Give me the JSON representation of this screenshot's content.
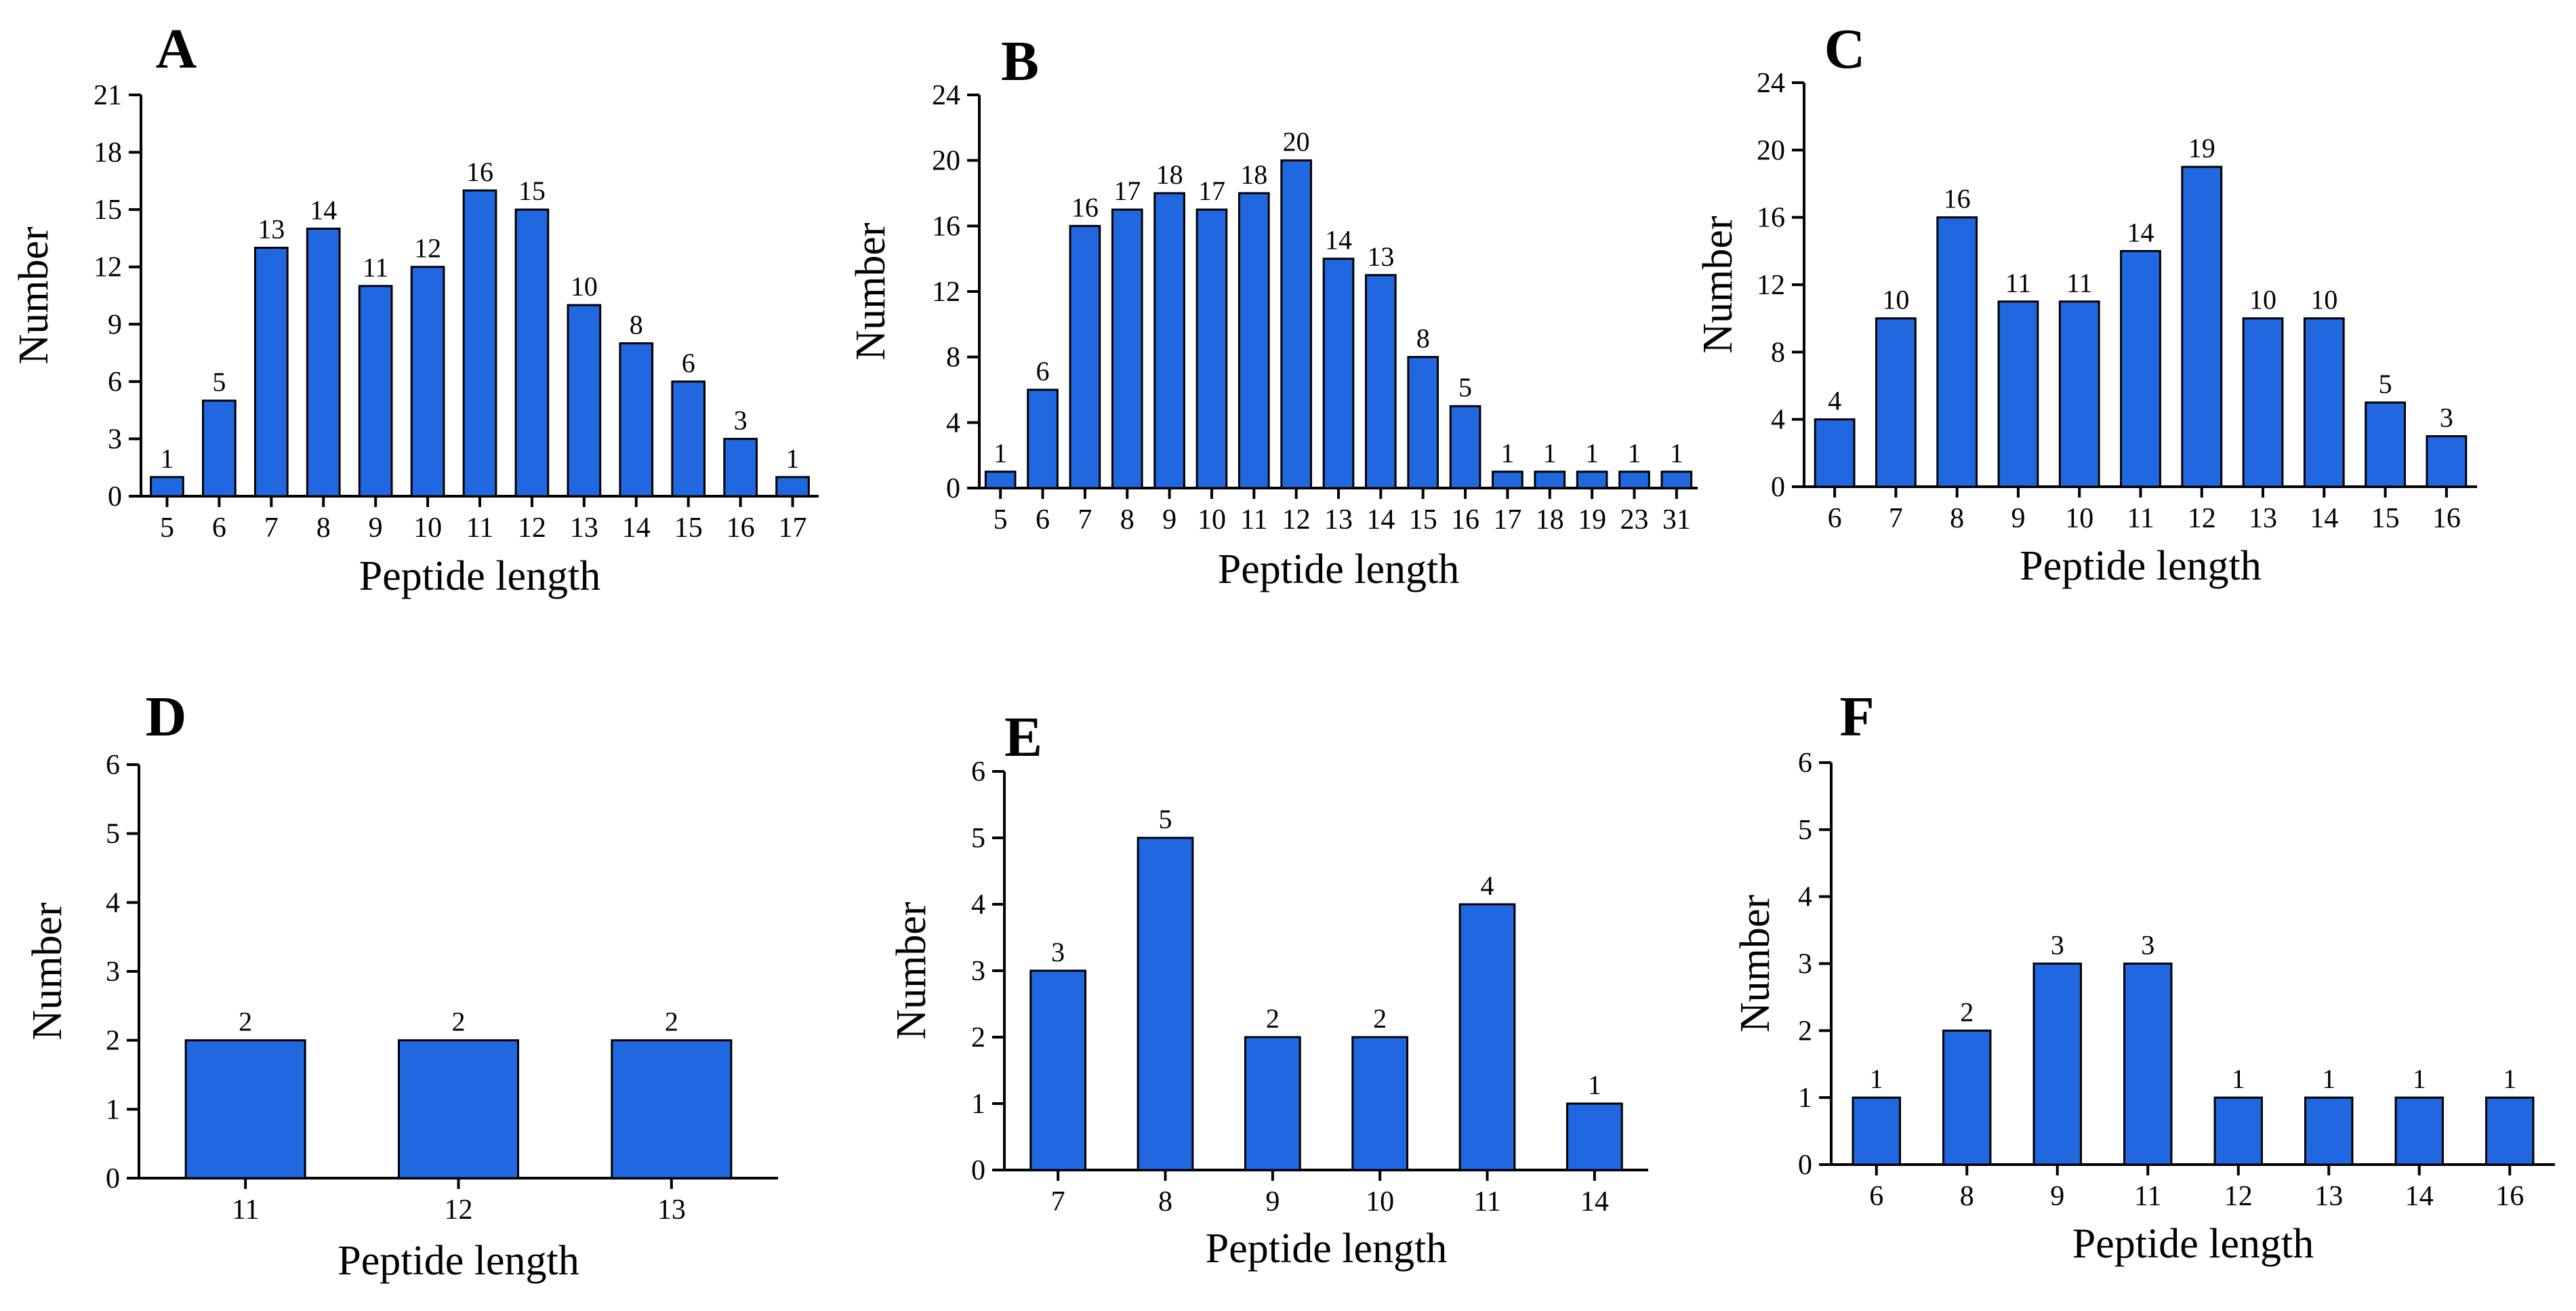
{
  "figure": {
    "bar_color": "#2168E0",
    "bar_edge": "#000000",
    "axis_color": "#000000"
  },
  "chart_data": [
    {
      "panel": "A",
      "type": "bar",
      "categories": [
        "5",
        "6",
        "7",
        "8",
        "9",
        "10",
        "11",
        "12",
        "13",
        "14",
        "15",
        "16",
        "17"
      ],
      "values": [
        1,
        5,
        13,
        14,
        11,
        12,
        16,
        15,
        10,
        8,
        6,
        3,
        1
      ],
      "data_labels": [
        "1",
        "5",
        "13",
        "14",
        "11",
        "12",
        "16",
        "15",
        "10",
        "8",
        "6",
        "3",
        "1"
      ],
      "xlabel": "Peptide length",
      "ylabel": "Number",
      "ylim": [
        0,
        21
      ],
      "yticks": [
        "0",
        "3",
        "6",
        "9",
        "12",
        "15",
        "18",
        "21"
      ]
    },
    {
      "panel": "B",
      "type": "bar",
      "categories": [
        "5",
        "6",
        "7",
        "8",
        "9",
        "10",
        "11",
        "12",
        "13",
        "14",
        "15",
        "16",
        "17",
        "18",
        "19",
        "23",
        "31"
      ],
      "values": [
        1,
        6,
        16,
        17,
        18,
        17,
        18,
        20,
        14,
        13,
        8,
        5,
        1,
        1,
        1,
        1,
        1
      ],
      "data_labels": [
        "1",
        "6",
        "16",
        "17",
        "18",
        "17",
        "18",
        "20",
        "14",
        "13",
        "8",
        "5",
        "1",
        "1",
        "1",
        "1",
        "1"
      ],
      "xlabel": "Peptide length",
      "ylabel": "Number",
      "ylim": [
        0,
        24
      ],
      "yticks": [
        "0",
        "4",
        "8",
        "12",
        "16",
        "20",
        "24"
      ]
    },
    {
      "panel": "C",
      "type": "bar",
      "categories": [
        "6",
        "7",
        "8",
        "9",
        "10",
        "11",
        "12",
        "13",
        "14",
        "15",
        "16"
      ],
      "values": [
        4,
        10,
        16,
        11,
        11,
        14,
        19,
        10,
        10,
        5,
        3
      ],
      "data_labels": [
        "4",
        "10",
        "16",
        "11",
        "11",
        "14",
        "19",
        "10",
        "10",
        "5",
        "3"
      ],
      "xlabel": "Peptide length",
      "ylabel": "Number",
      "ylim": [
        0,
        24
      ],
      "yticks": [
        "0",
        "4",
        "8",
        "12",
        "16",
        "20",
        "24"
      ]
    },
    {
      "panel": "D",
      "type": "bar",
      "categories": [
        "11",
        "12",
        "13"
      ],
      "values": [
        2,
        2,
        2
      ],
      "data_labels": [
        "2",
        "2",
        "2"
      ],
      "xlabel": "Peptide length",
      "ylabel": "Number",
      "ylim": [
        0,
        6
      ],
      "yticks": [
        "0",
        "1",
        "2",
        "3",
        "4",
        "5",
        "6"
      ]
    },
    {
      "panel": "E",
      "type": "bar",
      "categories": [
        "7",
        "8",
        "9",
        "10",
        "11",
        "14"
      ],
      "values": [
        3,
        5,
        2,
        2,
        4,
        1
      ],
      "data_labels": [
        "3",
        "5",
        "2",
        "2",
        "4",
        "1"
      ],
      "xlabel": "Peptide length",
      "ylabel": "Number",
      "ylim": [
        0,
        6
      ],
      "yticks": [
        "0",
        "1",
        "2",
        "3",
        "4",
        "5",
        "6"
      ]
    },
    {
      "panel": "F",
      "type": "bar",
      "categories": [
        "6",
        "8",
        "9",
        "11",
        "12",
        "13",
        "14",
        "16"
      ],
      "values": [
        1,
        2,
        3,
        3,
        1,
        1,
        1,
        1
      ],
      "data_labels": [
        "1",
        "2",
        "3",
        "3",
        "1",
        "1",
        "1",
        "1"
      ],
      "xlabel": "Peptide length",
      "ylabel": "Number",
      "ylim": [
        0,
        6
      ],
      "yticks": [
        "0",
        "1",
        "2",
        "3",
        "4",
        "5",
        "6"
      ]
    }
  ]
}
